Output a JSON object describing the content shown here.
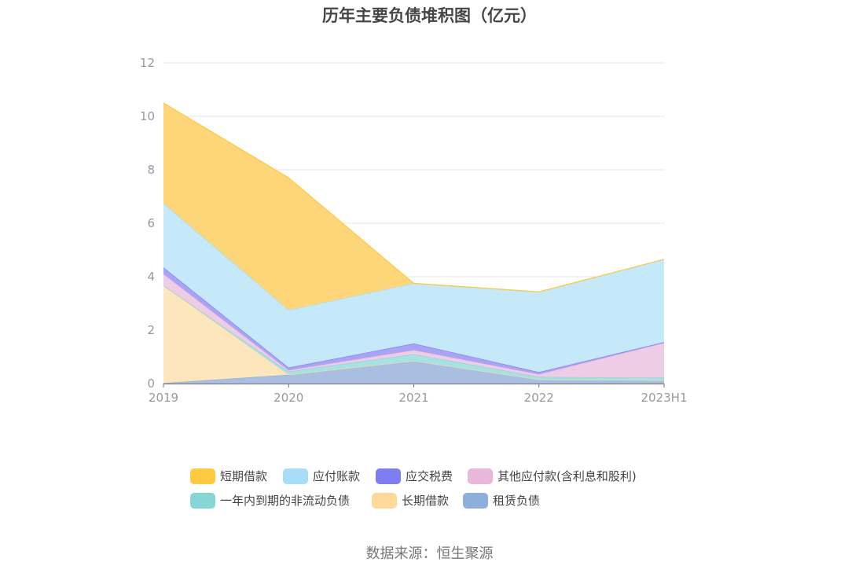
{
  "chart_data": {
    "type": "area",
    "stacked": true,
    "title": "历年主要负债堆积图（亿元）",
    "categories": [
      "2019",
      "2020",
      "2021",
      "2022",
      "2023H1"
    ],
    "ylim": [
      0,
      12
    ],
    "yticks": [
      0,
      2,
      4,
      6,
      8,
      10,
      12
    ],
    "grid": true,
    "legend_position": "bottom",
    "series": [
      {
        "name": "租赁负债",
        "color": "#8EAEDB",
        "fill": "#A9BEE0",
        "values": [
          0.02,
          0.33,
          0.85,
          0.15,
          0.12
        ]
      },
      {
        "name": "长期借款",
        "color": "#FFD99A",
        "fill": "#FDE6BE",
        "values": [
          3.65,
          0.0,
          0.0,
          0.0,
          0.0
        ]
      },
      {
        "name": "一年内到期的非流动负债",
        "color": "#86D6D6",
        "fill": "#A6E1E3",
        "values": [
          0.0,
          0.12,
          0.25,
          0.1,
          0.1
        ]
      },
      {
        "name": "其他应付款(含利息和股利)",
        "color": "#E8B7DA",
        "fill": "#EECCE6",
        "values": [
          0.43,
          0.05,
          0.15,
          0.1,
          1.3
        ]
      },
      {
        "name": "应交税费",
        "color": "#7E7EF0",
        "fill": "#A8A4F3",
        "values": [
          0.25,
          0.1,
          0.25,
          0.08,
          0.03
        ]
      },
      {
        "name": "应付账款",
        "color": "#A8DDF7",
        "fill": "#C6E9FA",
        "values": [
          2.4,
          2.15,
          2.25,
          3.0,
          3.1
        ]
      },
      {
        "name": "短期借款",
        "color": "#FFC940",
        "fill": "#FDD67A",
        "values": [
          3.75,
          4.95,
          0.0,
          0.0,
          0.0
        ]
      }
    ]
  },
  "legend": {
    "items": [
      {
        "label": "短期借款",
        "color": "#FFC940"
      },
      {
        "label": "应付账款",
        "color": "#A8DDF7"
      },
      {
        "label": "应交税费",
        "color": "#7E7EF0"
      },
      {
        "label": "其他应付款(含利息和股利)",
        "color": "#E8B7DA"
      },
      {
        "label": "一年内到期的非流动负债",
        "color": "#86D6D6"
      },
      {
        "label": "长期借款",
        "color": "#FFD99A"
      },
      {
        "label": "租赁负债",
        "color": "#8EAEDB"
      }
    ]
  },
  "source": "数据来源：恒生聚源"
}
